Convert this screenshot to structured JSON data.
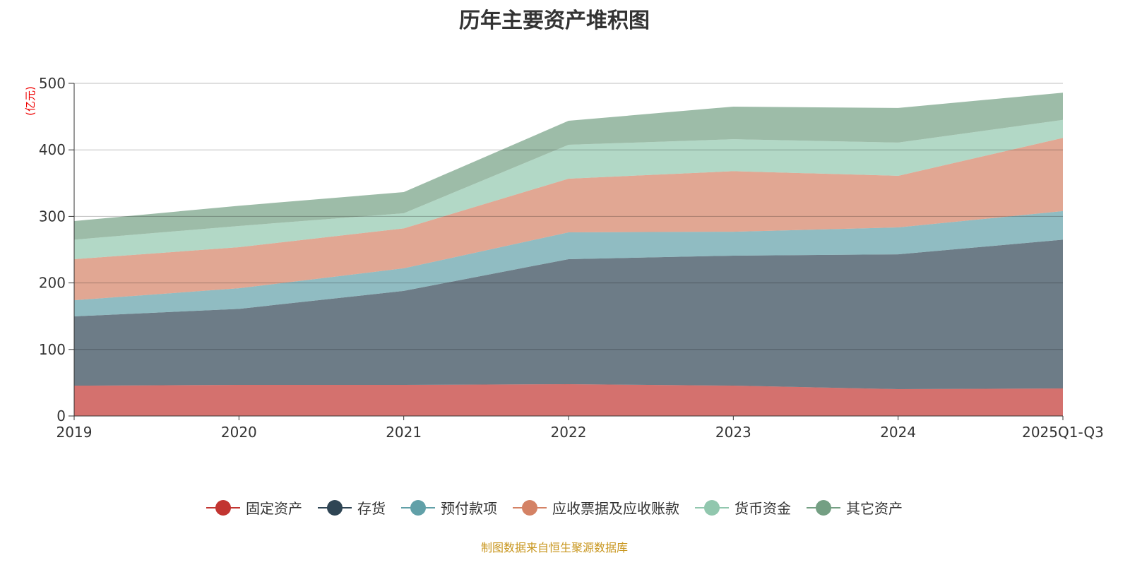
{
  "chart_data": {
    "type": "area",
    "stacked": true,
    "title": "历年主要资产堆积图",
    "ylabel": "(亿元)",
    "xlabel": "",
    "categories": [
      "2019",
      "2020",
      "2021",
      "2022",
      "2023",
      "2024",
      "2025Q1-Q3"
    ],
    "ylim": [
      0,
      500
    ],
    "yticks": [
      0,
      100,
      200,
      300,
      400,
      500
    ],
    "grid": true,
    "legend_position": "bottom",
    "series": [
      {
        "name": "固定资产",
        "color": "#c23531",
        "values": [
          45.6,
          46.7,
          46.7,
          47.8,
          45.6,
          40.3,
          41.4
        ]
      },
      {
        "name": "存货",
        "color": "#2f4554",
        "values": [
          104.1,
          114.3,
          141.3,
          187.9,
          195.4,
          202.7,
          223.6
        ]
      },
      {
        "name": "预付款项",
        "color": "#61a0a8",
        "values": [
          24.3,
          31.0,
          34.0,
          40.3,
          36.0,
          40.4,
          43.0
        ]
      },
      {
        "name": "应收票据及应收账款",
        "color": "#d48265",
        "values": [
          61.7,
          61.7,
          60.0,
          80.7,
          91.0,
          77.6,
          110.0
        ]
      },
      {
        "name": "货币资金",
        "color": "#91c7ae",
        "values": [
          29.3,
          31.9,
          22.7,
          50.9,
          48.0,
          50.0,
          27.0
        ]
      },
      {
        "name": "其它资产",
        "color": "#749f83",
        "values": [
          28.0,
          30.4,
          31.8,
          36.1,
          49.0,
          52.0,
          41.0
        ]
      }
    ]
  },
  "source": "制图数据来自恒生聚源数据库"
}
